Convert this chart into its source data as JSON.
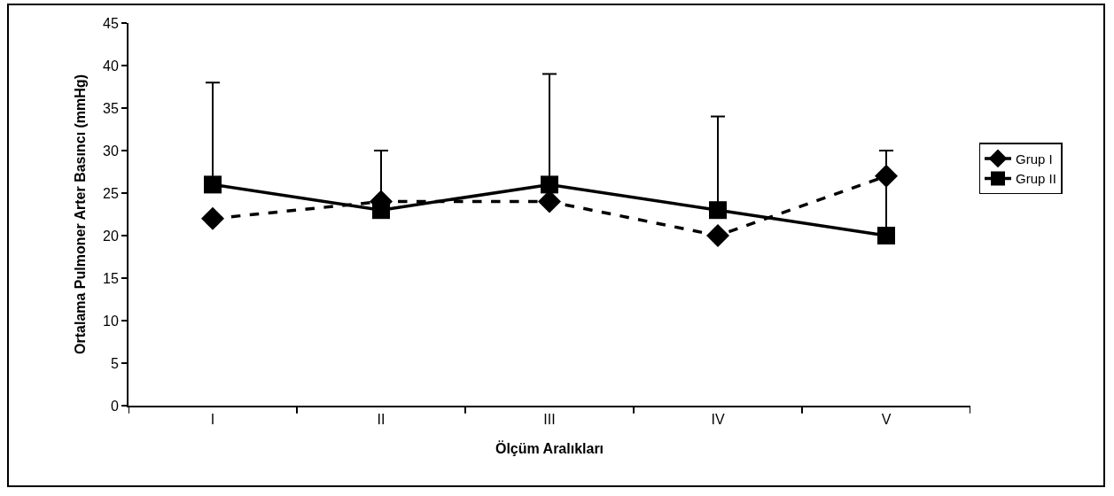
{
  "chart_data": {
    "type": "line",
    "xlabel": "Ölçüm Aralıkları",
    "ylabel": "Ortalama Pulmoner Arter Basıncı (mmHg)",
    "categories": [
      "I",
      "II",
      "III",
      "IV",
      "V"
    ],
    "series": [
      {
        "name": "Grup I",
        "color": "#000000",
        "values": [
          22,
          24,
          24,
          20,
          27
        ],
        "marker": "diamond",
        "line_style": "dashed"
      },
      {
        "name": "Grup II",
        "color": "#000000",
        "values": [
          26,
          23,
          26,
          23,
          20
        ],
        "marker": "square",
        "line_style": "solid",
        "errors": [
          [
            26,
            38
          ],
          [
            23,
            30
          ],
          [
            26,
            39
          ],
          [
            23,
            34
          ],
          [
            20,
            30
          ]
        ]
      }
    ],
    "ylim": [
      0,
      45
    ],
    "yticks": [
      0,
      5,
      10,
      15,
      20,
      25,
      30,
      35,
      40,
      45
    ],
    "grid": false,
    "legend": "right"
  }
}
